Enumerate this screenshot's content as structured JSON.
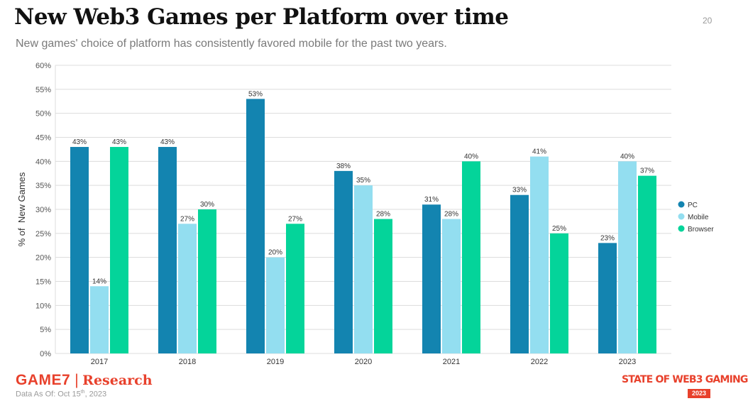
{
  "header": {
    "title": "New Web3 Games per Platform over time",
    "subtitle": "New games' choice of platform has consistently favored mobile for the past two years.",
    "page_number": "20"
  },
  "footer": {
    "brand": "GAME7",
    "brand_mark": "7",
    "separator": "|",
    "research": "Research",
    "data_as_of_prefix": "Data As Of: Oct 15",
    "data_as_of_sup": "th",
    "data_as_of_suffix": ", 2023",
    "badge_text": "STATE OF WEB3 GAMING",
    "badge_year": "2023",
    "brand_color": "#e8412c"
  },
  "chart_data": {
    "type": "bar",
    "title": "New Web3 Games per Platform over time",
    "xlabel": "",
    "ylabel": "% of  New Games",
    "ylim": [
      0,
      60
    ],
    "yticks": [
      0,
      5,
      10,
      15,
      20,
      25,
      30,
      35,
      40,
      45,
      50,
      55,
      60
    ],
    "ytick_labels": [
      "0%",
      "5%",
      "10%",
      "15%",
      "20%",
      "25%",
      "30%",
      "35%",
      "40%",
      "45%",
      "50%",
      "55%",
      "60%"
    ],
    "categories": [
      "2017",
      "2018",
      "2019",
      "2020",
      "2021",
      "2022",
      "2023"
    ],
    "series": [
      {
        "name": "PC",
        "color": "#1384b0",
        "values": [
          43,
          43,
          53,
          38,
          31,
          33,
          23
        ]
      },
      {
        "name": "Mobile",
        "color": "#93def0",
        "values": [
          14,
          27,
          20,
          35,
          28,
          41,
          40
        ]
      },
      {
        "name": "Browser",
        "color": "#04d49a",
        "values": [
          43,
          30,
          27,
          28,
          40,
          25,
          37
        ]
      }
    ],
    "data_labels": true,
    "grid": true,
    "legend_position": "right"
  }
}
